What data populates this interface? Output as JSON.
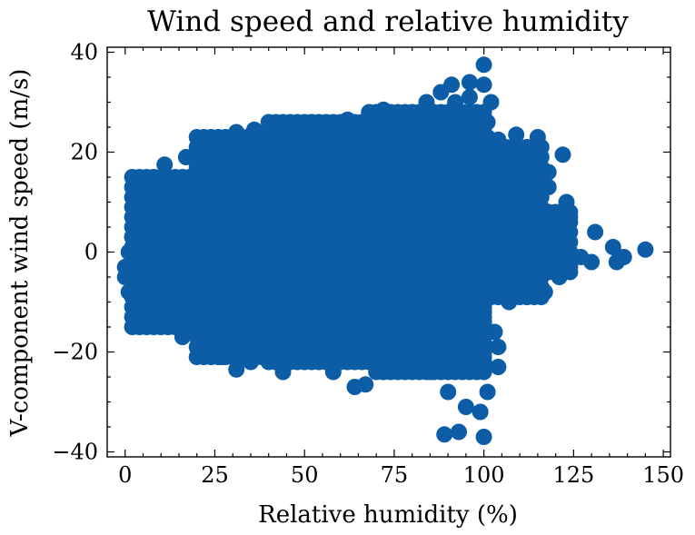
{
  "chart_data": {
    "type": "scatter",
    "title": "Wind speed and relative humidity",
    "xlabel": "Relative humidity (%)",
    "ylabel": "V-component wind speed (m/s)",
    "xlim": [
      -5,
      152
    ],
    "ylim": [
      -41,
      41
    ],
    "xticks": [
      0,
      25,
      50,
      75,
      100,
      125,
      150
    ],
    "xtick_labels": [
      "0",
      "25",
      "50",
      "75",
      "100",
      "125",
      "150"
    ],
    "yticks": [
      -40,
      -20,
      0,
      20,
      40
    ],
    "ytick_labels": [
      "−40",
      "−20",
      "0",
      "20",
      "40"
    ],
    "grid": false,
    "legend": "none",
    "marker_color": "#0c5da5",
    "series": [
      {
        "points_outer": [
          [
            100,
            37.5
          ],
          [
            100,
            33.5
          ],
          [
            96,
            34
          ],
          [
            91,
            33.5
          ],
          [
            88,
            32
          ],
          [
            84,
            30
          ],
          [
            80,
            28
          ],
          [
            72,
            28.5
          ],
          [
            68,
            28
          ],
          [
            62,
            26.5
          ],
          [
            58,
            25.5
          ],
          [
            52,
            26
          ],
          [
            46,
            25
          ],
          [
            42,
            24.5
          ],
          [
            36,
            24.5
          ],
          [
            31,
            24
          ],
          [
            27,
            21.5
          ],
          [
            22,
            20.5
          ],
          [
            17,
            19
          ],
          [
            11,
            17.5
          ],
          [
            8,
            15
          ],
          [
            5,
            10
          ],
          [
            3,
            7
          ],
          [
            2,
            3
          ],
          [
            1,
            0
          ],
          [
            0,
            -3
          ],
          [
            0,
            -5
          ],
          [
            1,
            -8
          ],
          [
            4,
            -11
          ],
          [
            9,
            -14
          ],
          [
            16,
            -17
          ],
          [
            22,
            -19
          ],
          [
            27,
            -21
          ],
          [
            31,
            -23.5
          ],
          [
            35,
            -22
          ],
          [
            44,
            -24
          ],
          [
            52,
            -20
          ],
          [
            58,
            -24
          ],
          [
            64,
            -27
          ],
          [
            67,
            -26.5
          ],
          [
            72,
            -24
          ],
          [
            79,
            -22
          ],
          [
            85,
            -24
          ],
          [
            90,
            -28
          ],
          [
            95,
            -31
          ],
          [
            99,
            -32
          ],
          [
            100,
            -37
          ],
          [
            93,
            -36
          ],
          [
            89,
            -36.5
          ],
          [
            101,
            -28
          ],
          [
            104,
            -23
          ],
          [
            104,
            -19
          ],
          [
            103,
            -16
          ],
          [
            107,
            -10
          ],
          [
            112,
            -9
          ],
          [
            117,
            -8
          ],
          [
            121,
            -5
          ],
          [
            124,
            -3
          ],
          [
            130,
            -2
          ],
          [
            137,
            -2
          ],
          [
            139,
            -1
          ],
          [
            145,
            0.5
          ],
          [
            136,
            1
          ],
          [
            131,
            4
          ],
          [
            124,
            7
          ],
          [
            123,
            10
          ],
          [
            118,
            13
          ],
          [
            122,
            19.5
          ],
          [
            115,
            23
          ],
          [
            109,
            23.5
          ],
          [
            104,
            22.5
          ],
          [
            101,
            23
          ],
          [
            101,
            26
          ],
          [
            102,
            30
          ],
          [
            99,
            27
          ],
          [
            96,
            31
          ],
          [
            92,
            30
          ],
          [
            118,
            16
          ],
          [
            113,
            17
          ],
          [
            120,
            -1
          ],
          [
            127,
            -1
          ],
          [
            108,
            5
          ],
          [
            110,
            -3
          ]
        ],
        "body_regions": [
          {
            "x": [
              2,
              20
            ],
            "y": [
              -15,
              16
            ]
          },
          {
            "x": [
              20,
              100
            ],
            "y": [
              -21,
              23
            ]
          },
          {
            "x": [
              40,
              100
            ],
            "y": [
              -22,
              26
            ]
          },
          {
            "x": [
              70,
              101
            ],
            "y": [
              -24,
              29
            ]
          },
          {
            "x": [
              100,
              117
            ],
            "y": [
              -9,
              21
            ]
          },
          {
            "x": [
              110,
              125
            ],
            "y": [
              -4,
              9
            ]
          }
        ]
      }
    ]
  }
}
